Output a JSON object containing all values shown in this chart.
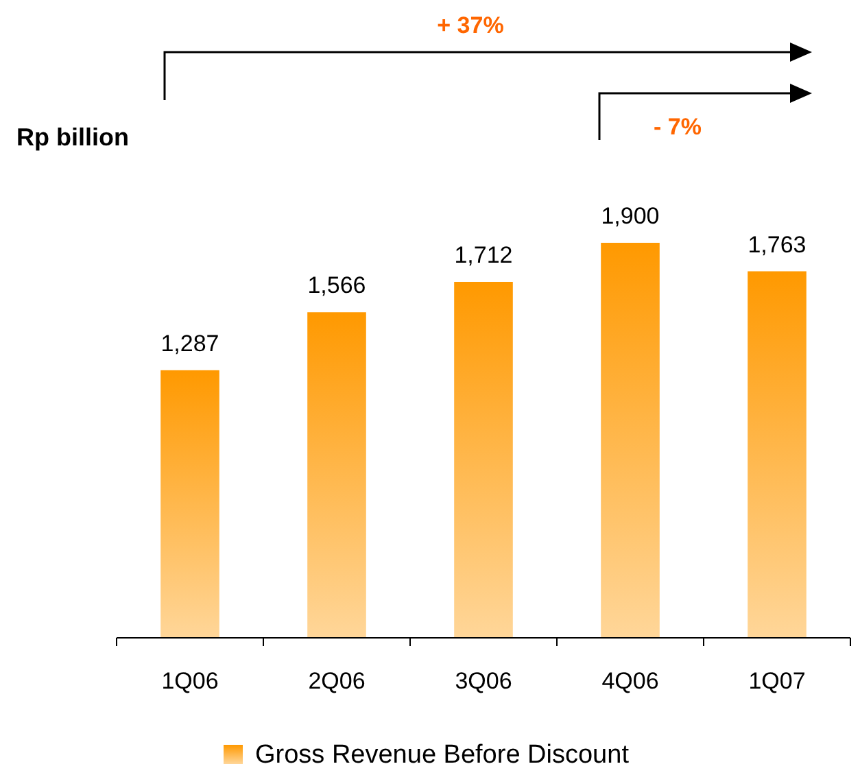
{
  "chart_data": {
    "type": "bar",
    "ylabel": "Rp billion",
    "categories": [
      "1Q06",
      "2Q06",
      "3Q06",
      "4Q06",
      "1Q07"
    ],
    "series": [
      {
        "name": "Gross Revenue Before Discount",
        "color": "#ff9900",
        "values": [
          1287,
          1566,
          1712,
          1900,
          1763
        ],
        "value_labels": [
          "1,287",
          "1,566",
          "1,712",
          "1,900",
          "1,763"
        ]
      }
    ],
    "legend": "bottom",
    "annotations": [
      "+ 37%",
      "- 7%"
    ]
  }
}
